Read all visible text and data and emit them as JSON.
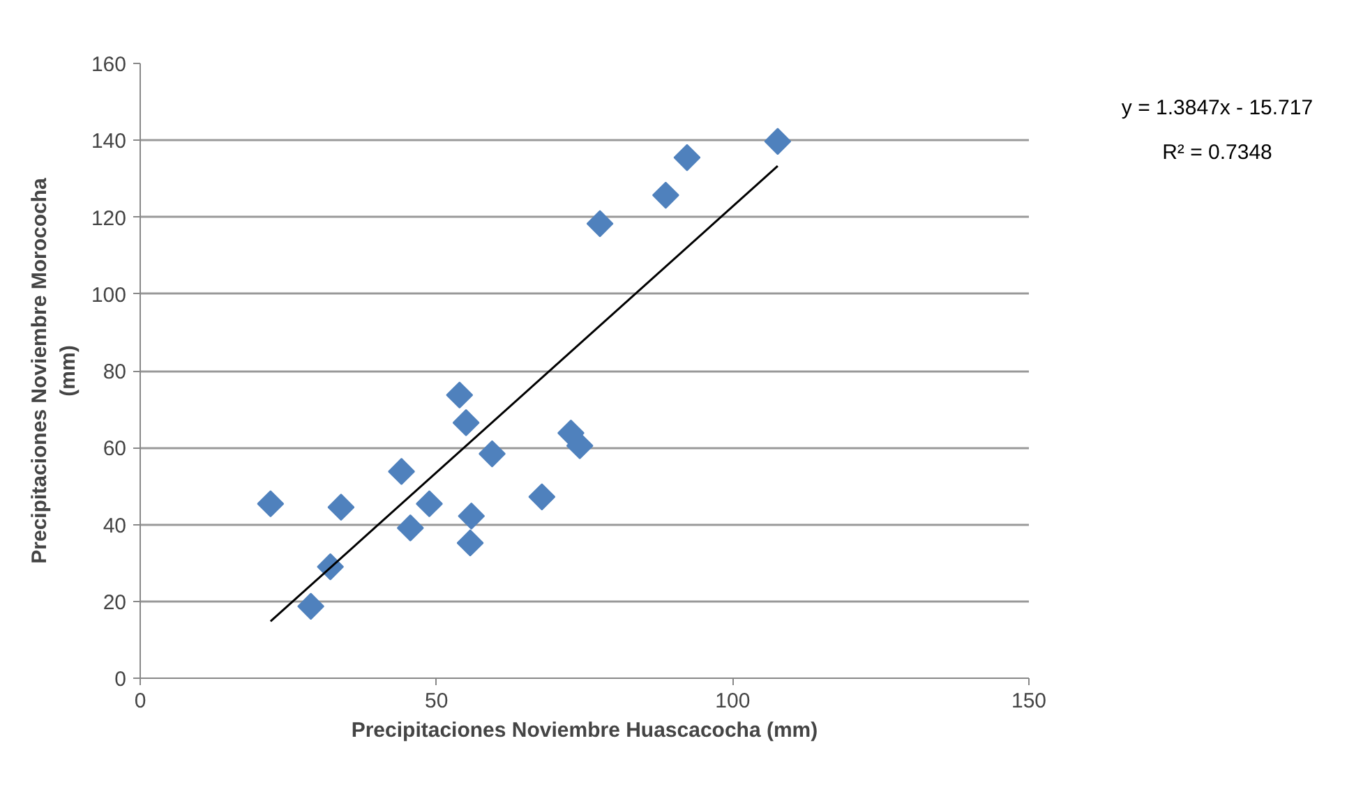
{
  "chart_data": {
    "type": "scatter",
    "xlabel": "Precipitaciones Noviembre Huascacocha (mm)",
    "ylabel": "Precipitaciones Noviembre Morococha\n(mm)",
    "xlim": [
      0,
      150
    ],
    "ylim": [
      0,
      160
    ],
    "xticks": [
      0,
      50,
      100,
      150
    ],
    "yticks": [
      0,
      20,
      40,
      60,
      80,
      100,
      120,
      140,
      160
    ],
    "grid": "y",
    "marker": "diamond",
    "annotations": [
      "y = 1.3847x - 15.717",
      "R² = 0.7348"
    ],
    "series": [
      {
        "color": "#4f81bd",
        "x": [
          22.0,
          33.9,
          32.1,
          28.8,
          44.1,
          45.6,
          48.8,
          53.9,
          55.0,
          59.4,
          55.9,
          55.7,
          67.8,
          72.7,
          74.2,
          77.6,
          88.7,
          92.3,
          107.6
        ],
        "values": [
          45.4,
          44.5,
          29.0,
          18.7,
          53.8,
          39.1,
          45.4,
          73.7,
          66.5,
          58.4,
          42.2,
          35.2,
          47.2,
          63.8,
          60.5,
          118.3,
          125.7,
          135.5,
          139.7
        ]
      },
      {
        "type": "line",
        "color": "#000000",
        "marker": "none",
        "x": [
          22.0,
          107.6
        ],
        "values": [
          14.8,
          133.3
        ]
      }
    ]
  }
}
